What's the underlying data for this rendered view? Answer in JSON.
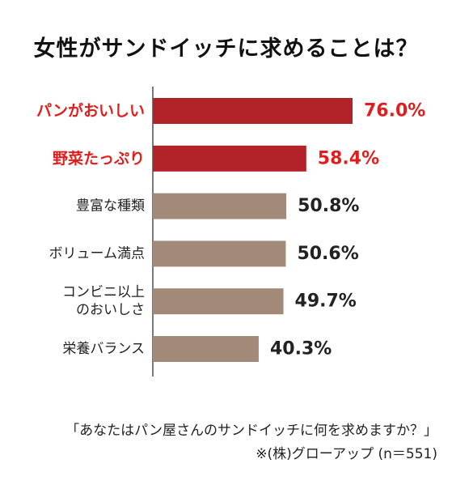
{
  "chart_data": {
    "type": "bar",
    "orientation": "horizontal",
    "title": "女性がサンドイッチに求めることは？",
    "categories": [
      "パンがおいしい",
      "野菜たっぷり",
      "豊富な種類",
      "ボリューム満点",
      "コンビニ以上\nのおいしさ",
      "栄養バランス"
    ],
    "values": [
      76.0,
      58.4,
      50.8,
      50.6,
      49.7,
      40.3
    ],
    "value_labels": [
      "76.0%",
      "58.4%",
      "50.8%",
      "50.6%",
      "49.7%",
      "40.3%"
    ],
    "highlighted": [
      true,
      true,
      false,
      false,
      false,
      false
    ],
    "xlim": [
      0,
      100
    ],
    "grid": false,
    "legend": "none",
    "colors": {
      "highlight_bar": "#b22329",
      "highlight_text": "#e01e1e",
      "normal_bar": "#a38a78",
      "normal_text": "#222222"
    }
  },
  "footnote": {
    "question": "「あなたはパン屋さんのサンドイッチに何を求めますか？」",
    "source": "※(株)グローアップ (n＝551)"
  }
}
